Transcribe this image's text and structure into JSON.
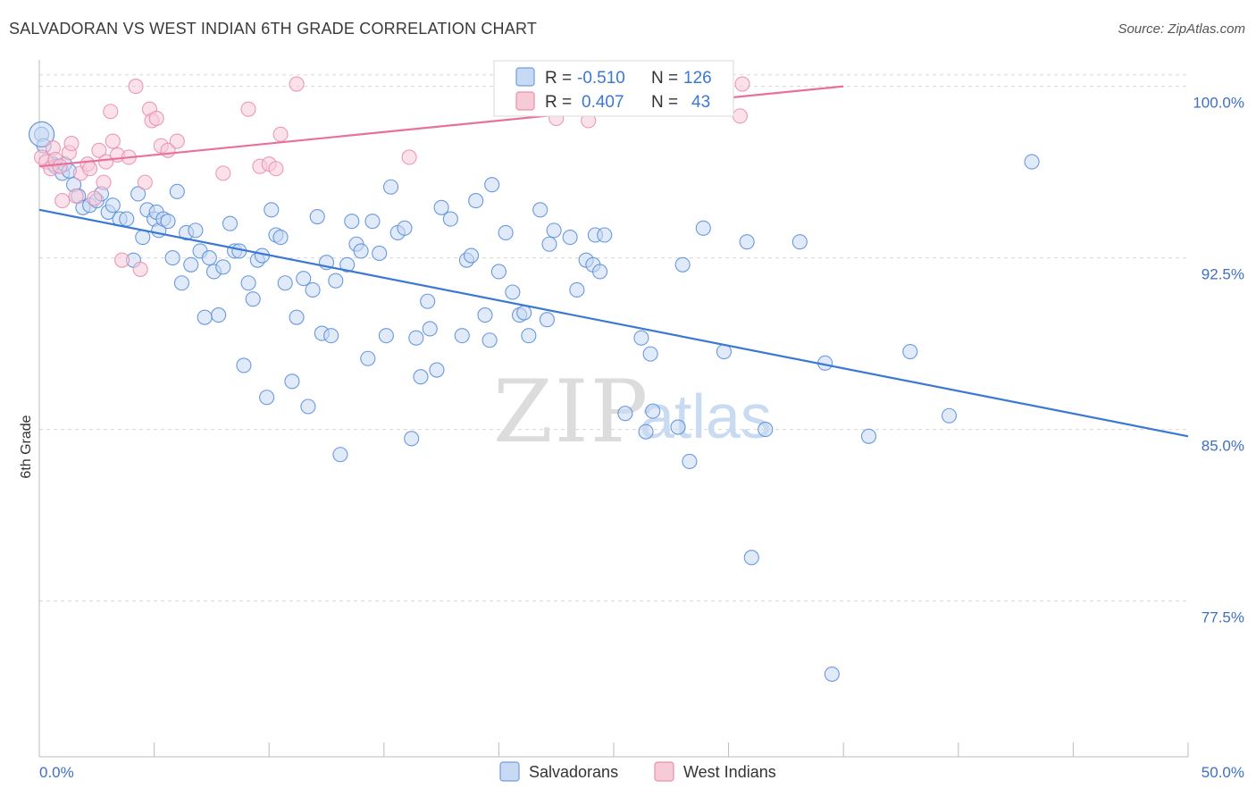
{
  "title": "SALVADORAN VS WEST INDIAN 6TH GRADE CORRELATION CHART",
  "source": "Source: ZipAtlas.com",
  "watermark": {
    "zip": "ZIP",
    "atlas": "atlas"
  },
  "colors": {
    "blue": "#3a78d4",
    "blue_fill": "#c7d9f3",
    "pink": "#e8709a",
    "pink_fill": "#f7cad8",
    "grid": "#d8d8d8",
    "tick_text": "#3e6fc6"
  },
  "legend": {
    "rows": [
      {
        "r_label": "R =",
        "r_value": "-0.510",
        "n_label": "N =",
        "n_value": "126"
      },
      {
        "r_label": "R =",
        "r_value": "0.407",
        "n_label": "N =",
        "n_value": "43"
      }
    ]
  },
  "chart_data": {
    "type": "scatter",
    "title": "SALVADORAN VS WEST INDIAN 6TH GRADE CORRELATION CHART",
    "xlabel": "",
    "ylabel": "6th Grade",
    "xlim": [
      0,
      50
    ],
    "ylim": [
      71.0,
      101.0
    ],
    "x_tick_labels": [
      "0.0%",
      "50.0%"
    ],
    "y_ticks": [
      77.5,
      85.0,
      92.5,
      100.0
    ],
    "y_tick_labels": [
      "77.5%",
      "85.0%",
      "92.5%",
      "100.0%"
    ],
    "grid": true,
    "legend_position": "bottom",
    "series": [
      {
        "name": "Salvadorans",
        "color": "#3a78d4",
        "r": -0.51,
        "n": 126,
        "trend": {
          "x": [
            0,
            50
          ],
          "y": [
            94.6,
            84.7
          ]
        },
        "points": [
          [
            0.1,
            97.9
          ],
          [
            0.2,
            97.4
          ],
          [
            0.6,
            96.6
          ],
          [
            0.7,
            96.5
          ],
          [
            1.0,
            96.2
          ],
          [
            1.1,
            96.6
          ],
          [
            1.3,
            96.3
          ],
          [
            1.5,
            95.7
          ],
          [
            1.7,
            95.2
          ],
          [
            1.9,
            94.7
          ],
          [
            2.2,
            94.8
          ],
          [
            2.5,
            95.0
          ],
          [
            2.7,
            95.3
          ],
          [
            3.0,
            94.5
          ],
          [
            3.2,
            94.8
          ],
          [
            3.5,
            94.2
          ],
          [
            3.8,
            94.2
          ],
          [
            4.1,
            92.4
          ],
          [
            4.3,
            95.3
          ],
          [
            4.5,
            93.4
          ],
          [
            4.7,
            94.6
          ],
          [
            5.0,
            94.2
          ],
          [
            5.1,
            94.5
          ],
          [
            5.2,
            93.7
          ],
          [
            5.4,
            94.2
          ],
          [
            5.6,
            94.1
          ],
          [
            5.8,
            92.5
          ],
          [
            6.0,
            95.4
          ],
          [
            6.2,
            91.4
          ],
          [
            6.4,
            93.6
          ],
          [
            6.6,
            92.2
          ],
          [
            6.8,
            93.7
          ],
          [
            7.0,
            92.8
          ],
          [
            7.2,
            89.9
          ],
          [
            7.4,
            92.5
          ],
          [
            7.6,
            91.9
          ],
          [
            7.8,
            90.0
          ],
          [
            8.0,
            92.1
          ],
          [
            8.3,
            94.0
          ],
          [
            8.5,
            92.8
          ],
          [
            8.7,
            92.8
          ],
          [
            8.9,
            87.8
          ],
          [
            9.1,
            91.4
          ],
          [
            9.3,
            90.7
          ],
          [
            9.5,
            92.4
          ],
          [
            9.7,
            92.6
          ],
          [
            9.9,
            86.4
          ],
          [
            10.1,
            94.6
          ],
          [
            10.3,
            93.5
          ],
          [
            10.5,
            93.4
          ],
          [
            10.7,
            91.4
          ],
          [
            11.0,
            87.1
          ],
          [
            11.2,
            89.9
          ],
          [
            11.5,
            91.6
          ],
          [
            11.7,
            86.0
          ],
          [
            11.9,
            91.1
          ],
          [
            12.1,
            94.3
          ],
          [
            12.3,
            89.2
          ],
          [
            12.5,
            92.3
          ],
          [
            12.7,
            89.1
          ],
          [
            12.9,
            91.5
          ],
          [
            13.1,
            83.9
          ],
          [
            13.4,
            92.2
          ],
          [
            13.6,
            94.1
          ],
          [
            13.8,
            93.1
          ],
          [
            14.0,
            92.8
          ],
          [
            14.3,
            88.1
          ],
          [
            14.5,
            94.1
          ],
          [
            14.8,
            92.7
          ],
          [
            15.1,
            89.1
          ],
          [
            15.3,
            95.6
          ],
          [
            15.6,
            93.6
          ],
          [
            15.9,
            93.8
          ],
          [
            16.2,
            84.6
          ],
          [
            16.4,
            89.0
          ],
          [
            16.6,
            87.3
          ],
          [
            16.9,
            90.6
          ],
          [
            17.0,
            89.4
          ],
          [
            17.3,
            87.6
          ],
          [
            17.5,
            94.7
          ],
          [
            17.9,
            94.2
          ],
          [
            18.4,
            89.1
          ],
          [
            18.6,
            92.4
          ],
          [
            18.8,
            92.6
          ],
          [
            19.0,
            95.0
          ],
          [
            19.4,
            90.0
          ],
          [
            19.6,
            88.9
          ],
          [
            19.7,
            95.7
          ],
          [
            20.0,
            91.9
          ],
          [
            20.3,
            93.6
          ],
          [
            20.6,
            91.0
          ],
          [
            20.9,
            90.0
          ],
          [
            21.1,
            90.1
          ],
          [
            21.3,
            89.1
          ],
          [
            21.8,
            94.6
          ],
          [
            22.1,
            89.8
          ],
          [
            22.2,
            93.1
          ],
          [
            22.4,
            93.7
          ],
          [
            23.1,
            93.4
          ],
          [
            23.4,
            91.1
          ],
          [
            23.8,
            92.4
          ],
          [
            24.1,
            92.2
          ],
          [
            24.2,
            93.5
          ],
          [
            24.4,
            91.9
          ],
          [
            24.6,
            93.5
          ],
          [
            25.0,
            100.1
          ],
          [
            25.5,
            85.7
          ],
          [
            26.2,
            89.0
          ],
          [
            26.4,
            84.9
          ],
          [
            26.6,
            88.3
          ],
          [
            26.7,
            85.8
          ],
          [
            27.8,
            85.1
          ],
          [
            28.0,
            92.2
          ],
          [
            28.3,
            83.6
          ],
          [
            28.9,
            93.8
          ],
          [
            29.8,
            88.4
          ],
          [
            30.8,
            93.2
          ],
          [
            31.0,
            79.4
          ],
          [
            31.6,
            85.0
          ],
          [
            33.1,
            93.2
          ],
          [
            34.2,
            87.9
          ],
          [
            34.5,
            74.3
          ],
          [
            36.1,
            84.7
          ],
          [
            37.9,
            88.4
          ],
          [
            39.6,
            85.6
          ],
          [
            43.2,
            96.7
          ]
        ]
      },
      {
        "name": "West Indians",
        "color": "#e8709a",
        "r": 0.407,
        "n": 43,
        "trend": {
          "x": [
            0,
            35
          ],
          "y": [
            96.5,
            100.0
          ]
        },
        "points": [
          [
            0.1,
            96.9
          ],
          [
            0.3,
            96.7
          ],
          [
            0.5,
            96.4
          ],
          [
            0.6,
            97.3
          ],
          [
            0.7,
            96.8
          ],
          [
            0.9,
            96.5
          ],
          [
            1.0,
            95.0
          ],
          [
            1.3,
            97.1
          ],
          [
            1.4,
            97.5
          ],
          [
            1.6,
            95.2
          ],
          [
            1.8,
            96.2
          ],
          [
            2.1,
            96.6
          ],
          [
            2.2,
            96.4
          ],
          [
            2.4,
            95.1
          ],
          [
            2.6,
            97.2
          ],
          [
            2.8,
            95.8
          ],
          [
            2.9,
            96.7
          ],
          [
            3.1,
            98.9
          ],
          [
            3.2,
            97.6
          ],
          [
            3.4,
            97.0
          ],
          [
            3.6,
            92.4
          ],
          [
            3.9,
            96.9
          ],
          [
            4.2,
            100.0
          ],
          [
            4.4,
            92.0
          ],
          [
            4.6,
            95.8
          ],
          [
            4.8,
            99.0
          ],
          [
            4.9,
            98.5
          ],
          [
            5.1,
            98.6
          ],
          [
            5.3,
            97.4
          ],
          [
            5.6,
            97.2
          ],
          [
            6.0,
            97.6
          ],
          [
            8.0,
            96.2
          ],
          [
            9.1,
            99.0
          ],
          [
            9.6,
            96.5
          ],
          [
            10.0,
            96.6
          ],
          [
            10.3,
            96.4
          ],
          [
            10.5,
            97.9
          ],
          [
            11.2,
            100.1
          ],
          [
            16.1,
            96.9
          ],
          [
            22.5,
            98.6
          ],
          [
            23.9,
            98.5
          ],
          [
            30.5,
            98.7
          ],
          [
            30.6,
            100.1
          ]
        ]
      }
    ]
  },
  "bottom_legend": [
    {
      "label": "Salvadorans"
    },
    {
      "label": "West Indians"
    }
  ]
}
